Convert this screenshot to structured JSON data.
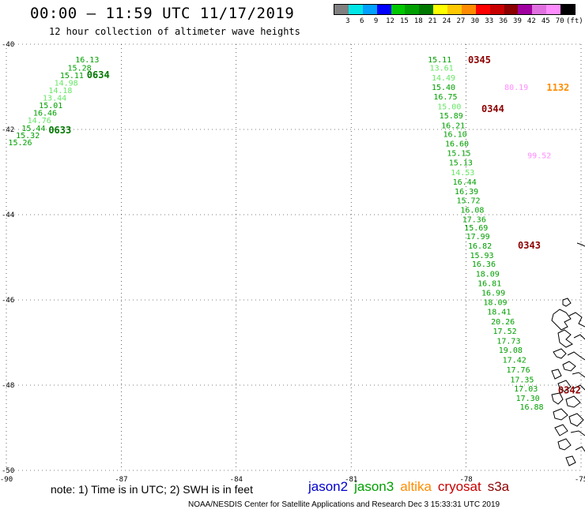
{
  "header": {
    "title": "00:00 – 11:59 UTC 11/17/2019",
    "subtitle": "12 hour collection of altimeter wave heights"
  },
  "color_scale": {
    "colors": [
      "#808080",
      "#00e6e6",
      "#00a0ff",
      "#0000ff",
      "#00c800",
      "#00a000",
      "#007800",
      "#ffff00",
      "#ffc800",
      "#ff8c00",
      "#ff0000",
      "#c80000",
      "#8c0000",
      "#a000a0",
      "#e070e0",
      "#ff8cff",
      "#000000"
    ],
    "labels": [
      "3",
      "6",
      "9",
      "12",
      "15",
      "18",
      "21",
      "24",
      "27",
      "30",
      "33",
      "36",
      "39",
      "42",
      "45",
      "70"
    ],
    "unit": "(ft)"
  },
  "map": {
    "lat_ticks": [
      "-40",
      "-42",
      "-44",
      "-46",
      "-48",
      "-50"
    ],
    "lon_ticks": [
      "-90",
      "-87",
      "-84",
      "-81",
      "-78",
      "-75"
    ],
    "lat_range": [
      -50,
      -40
    ],
    "lon_range": [
      -90,
      -75
    ],
    "tracks": [
      {
        "satellite": "jason3",
        "time_labels": [
          {
            "text": "0634",
            "lat": -40.7,
            "lon": -87.9,
            "color": "#007800"
          },
          {
            "text": "0633",
            "lat": -42.0,
            "lon": -88.9,
            "color": "#007800"
          }
        ],
        "points": [
          {
            "v": "16.13",
            "lat": -40.35,
            "lon": -88.2,
            "color": "#00a000"
          },
          {
            "v": "15.28",
            "lat": -40.55,
            "lon": -88.4,
            "color": "#00a000"
          },
          {
            "v": "15.11",
            "lat": -40.72,
            "lon": -88.6,
            "color": "#00a000"
          },
          {
            "v": "14.98",
            "lat": -40.9,
            "lon": -88.75,
            "color": "#66e666"
          },
          {
            "v": "14.18",
            "lat": -41.07,
            "lon": -88.9,
            "color": "#66e666"
          },
          {
            "v": "13.44",
            "lat": -41.25,
            "lon": -89.05,
            "color": "#66e666"
          },
          {
            "v": "15.01",
            "lat": -41.43,
            "lon": -89.15,
            "color": "#00a000"
          },
          {
            "v": "16.46",
            "lat": -41.6,
            "lon": -89.3,
            "color": "#00a000"
          },
          {
            "v": "14.76",
            "lat": -41.78,
            "lon": -89.45,
            "color": "#66e666"
          },
          {
            "v": "15.44",
            "lat": -41.96,
            "lon": -89.6,
            "color": "#00a000"
          },
          {
            "v": "15.32",
            "lat": -42.13,
            "lon": -89.75,
            "color": "#00a000"
          },
          {
            "v": "15.26",
            "lat": -42.3,
            "lon": -89.95,
            "color": "#00a000"
          }
        ]
      },
      {
        "satellite": "jason3",
        "time_labels": [
          {
            "text": "0345",
            "lat": -40.35,
            "lon": -77.95,
            "color": "#8c0000"
          }
        ],
        "points": [
          {
            "v": "15.11",
            "lat": -40.35,
            "lon": -79.0,
            "color": "#00a000"
          },
          {
            "v": "13.61",
            "lat": -40.55,
            "lon": -78.95,
            "color": "#66e666"
          },
          {
            "v": "14.49",
            "lat": -40.78,
            "lon": -78.9,
            "color": "#66e666"
          },
          {
            "v": "15.40",
            "lat": -41.0,
            "lon": -78.9,
            "color": "#00a000"
          },
          {
            "v": "16.75",
            "lat": -41.22,
            "lon": -78.85,
            "color": "#00a000"
          },
          {
            "v": "15.00",
            "lat": -41.45,
            "lon": -78.75,
            "color": "#66e666"
          },
          {
            "v": "15.89",
            "lat": -41.67,
            "lon": -78.7,
            "color": "#00a000"
          },
          {
            "v": "16.21",
            "lat": -41.9,
            "lon": -78.65,
            "color": "#00a000"
          },
          {
            "v": "16.10",
            "lat": -42.1,
            "lon": -78.6,
            "color": "#00a000"
          },
          {
            "v": "16.60",
            "lat": -42.32,
            "lon": -78.55,
            "color": "#00a000"
          },
          {
            "v": "15.15",
            "lat": -42.55,
            "lon": -78.5,
            "color": "#00a000"
          },
          {
            "v": "15.13",
            "lat": -42.77,
            "lon": -78.45,
            "color": "#00a000"
          },
          {
            "v": "14.53",
            "lat": -43.0,
            "lon": -78.4,
            "color": "#66e666"
          },
          {
            "v": "16.44",
            "lat": -43.22,
            "lon": -78.35,
            "color": "#00a000"
          },
          {
            "v": "16.39",
            "lat": -43.44,
            "lon": -78.3,
            "color": "#00a000"
          },
          {
            "v": "15.72",
            "lat": -43.66,
            "lon": -78.25,
            "color": "#00a000"
          },
          {
            "v": "16.08",
            "lat": -43.88,
            "lon": -78.15,
            "color": "#00a000"
          },
          {
            "v": "17.36",
            "lat": -44.1,
            "lon": -78.1,
            "color": "#00a000"
          },
          {
            "v": "15.69",
            "lat": -44.3,
            "lon": -78.05,
            "color": "#00a000"
          },
          {
            "v": "17.99",
            "lat": -44.5,
            "lon": -78.0,
            "color": "#00a000"
          },
          {
            "v": "16.82",
            "lat": -44.72,
            "lon": -77.95,
            "color": "#00a000"
          },
          {
            "v": "15.93",
            "lat": -44.94,
            "lon": -77.9,
            "color": "#00a000"
          },
          {
            "v": "16.36",
            "lat": -45.15,
            "lon": -77.85,
            "color": "#00a000"
          },
          {
            "v": "18.09",
            "lat": -45.38,
            "lon": -77.75,
            "color": "#00a000"
          },
          {
            "v": "16.81",
            "lat": -45.6,
            "lon": -77.7,
            "color": "#00a000"
          },
          {
            "v": "16.99",
            "lat": -45.82,
            "lon": -77.6,
            "color": "#00a000"
          },
          {
            "v": "18.09",
            "lat": -46.05,
            "lon": -77.55,
            "color": "#00a000"
          },
          {
            "v": "18.41",
            "lat": -46.27,
            "lon": -77.45,
            "color": "#00a000"
          },
          {
            "v": "20.26",
            "lat": -46.5,
            "lon": -77.35,
            "color": "#00a000"
          },
          {
            "v": "17.52",
            "lat": -46.72,
            "lon": -77.3,
            "color": "#00a000"
          },
          {
            "v": "17.73",
            "lat": -46.95,
            "lon": -77.2,
            "color": "#00a000"
          },
          {
            "v": "19.08",
            "lat": -47.17,
            "lon": -77.15,
            "color": "#00a000"
          },
          {
            "v": "17.42",
            "lat": -47.4,
            "lon": -77.05,
            "color": "#00a000"
          },
          {
            "v": "17.76",
            "lat": -47.63,
            "lon": -76.95,
            "color": "#00a000"
          },
          {
            "v": "17.35",
            "lat": -47.86,
            "lon": -76.85,
            "color": "#00a000"
          },
          {
            "v": "17.03",
            "lat": -48.07,
            "lon": -76.75,
            "color": "#00a000"
          },
          {
            "v": "17.30",
            "lat": -48.3,
            "lon": -76.7,
            "color": "#00a000"
          },
          {
            "v": "16.88",
            "lat": -48.5,
            "lon": -76.6,
            "color": "#00a000"
          }
        ]
      },
      {
        "satellite": "cryosat",
        "time_labels": [
          {
            "text": "0344",
            "lat": -41.5,
            "lon": -77.6,
            "color": "#8c0000"
          },
          {
            "text": "0343",
            "lat": -44.7,
            "lon": -76.65,
            "color": "#8c0000"
          },
          {
            "text": "0342",
            "lat": -48.1,
            "lon": -75.6,
            "color": "#8c0000"
          }
        ],
        "points": []
      },
      {
        "satellite": "s3a",
        "time_labels": [
          {
            "text": "1132",
            "lat": -41.0,
            "lon": -75.9,
            "color": "#ff8c00"
          }
        ],
        "points": [
          {
            "v": "80.19",
            "lat": -41.0,
            "lon": -77.0,
            "color": "#ff8cff"
          },
          {
            "v": "99.52",
            "lat": -42.6,
            "lon": -76.4,
            "color": "#ff8cff"
          }
        ]
      }
    ]
  },
  "footer": {
    "note": "note: 1) Time is in UTC; 2) SWH is in feet",
    "satellites": [
      {
        "name": "jason2",
        "color": "#0000cc"
      },
      {
        "name": "jason3",
        "color": "#00a000"
      },
      {
        "name": "altika",
        "color": "#ff8c00"
      },
      {
        "name": "cryosat",
        "color": "#c80000"
      },
      {
        "name": "s3a",
        "color": "#8c0000"
      }
    ],
    "credit": "NOAA/NESDIS Center for Satellite Applications and Research    Dec  3 15:33:31 UTC 2019"
  }
}
